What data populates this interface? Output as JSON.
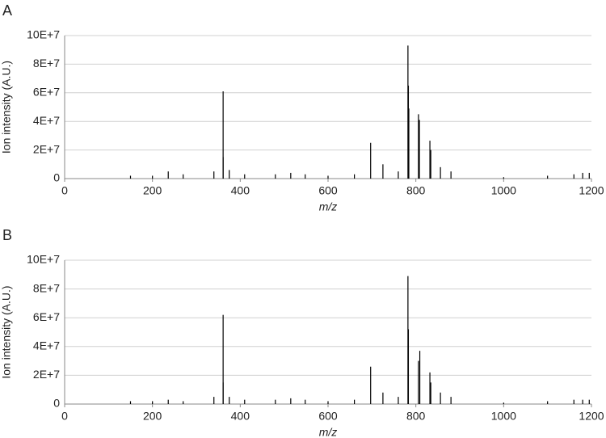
{
  "chart_data": [
    {
      "type": "spectrum",
      "panel": "A",
      "xlabel": "m/z",
      "ylabel": "Ion intensity (A.U.)",
      "color": "#000000",
      "grid": true,
      "x": [
        150,
        200,
        236,
        270,
        340,
        361,
        361,
        375,
        410,
        480,
        515,
        548,
        600,
        660,
        697,
        725,
        760,
        782,
        783,
        784,
        806,
        808,
        832,
        834,
        856,
        880,
        1000,
        1100,
        1160,
        1180,
        1195
      ],
      "values": [
        2000000,
        2000000,
        5000000,
        3000000,
        5000000,
        61000000,
        15000000,
        6000000,
        3000000,
        3000000,
        4000000,
        3000000,
        2000000,
        3000000,
        25000000,
        10000000,
        5000000,
        93000000,
        65000000,
        49000000,
        45000000,
        41000000,
        26500000,
        20000000,
        8000000,
        5000000,
        1000000,
        2000000,
        3000000,
        4000000,
        4000000
      ],
      "xlim": [
        0,
        1200
      ],
      "xticks": [
        0,
        200,
        400,
        600,
        800,
        1000,
        1200
      ],
      "ylim": [
        0,
        100000000
      ],
      "yticks": [
        0,
        {
          "value": 20000000,
          "label": "2E+7"
        },
        {
          "value": 40000000,
          "label": "4E+7"
        },
        {
          "value": 60000000,
          "label": "6E+7"
        },
        {
          "value": 80000000,
          "label": "8E+7"
        },
        {
          "value": 100000000,
          "label": "10E+7"
        }
      ]
    },
    {
      "type": "spectrum",
      "panel": "B",
      "xlabel": "m/z",
      "ylabel": "Ion intensity (A.U.)",
      "color": "#000000",
      "grid": true,
      "x": [
        150,
        200,
        236,
        270,
        340,
        361,
        361,
        375,
        410,
        480,
        515,
        548,
        600,
        660,
        697,
        725,
        760,
        782,
        783,
        806,
        809,
        832,
        834,
        856,
        880,
        1000,
        1100,
        1160,
        1180,
        1195
      ],
      "values": [
        2000000,
        2000000,
        3000000,
        2000000,
        5000000,
        62000000,
        15000000,
        5000000,
        3000000,
        3000000,
        4000000,
        3000000,
        2000000,
        3000000,
        26000000,
        8000000,
        5000000,
        89000000,
        52000000,
        30000000,
        37000000,
        22000000,
        15000000,
        8000000,
        5000000,
        1000000,
        2000000,
        3000000,
        3000000,
        3000000
      ],
      "xlim": [
        0,
        1200
      ],
      "xticks": [
        0,
        200,
        400,
        600,
        800,
        1000,
        1200
      ],
      "ylim": [
        0,
        100000000
      ],
      "yticks": [
        0,
        {
          "value": 20000000,
          "label": "2E+7"
        },
        {
          "value": 40000000,
          "label": "4E+7"
        },
        {
          "value": 60000000,
          "label": "6E+7"
        },
        {
          "value": 80000000,
          "label": "8E+7"
        },
        {
          "value": 100000000,
          "label": "10E+7"
        }
      ]
    }
  ]
}
